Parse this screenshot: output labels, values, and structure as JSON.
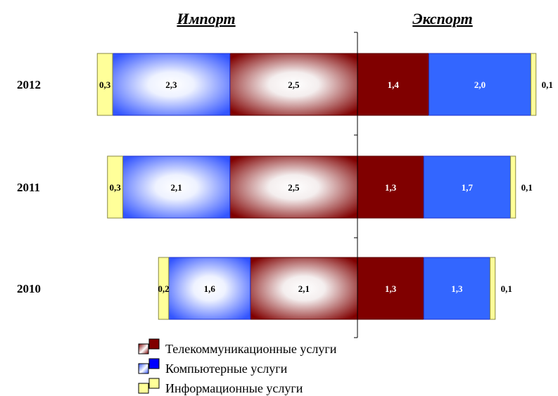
{
  "chart_data": {
    "type": "bar",
    "orientation": "horizontal",
    "stacked": "diverging",
    "headers": {
      "import": "Импорт",
      "export": "Экспорт"
    },
    "categories": [
      "2012",
      "2011",
      "2010"
    ],
    "series": [
      {
        "name": "Телекоммуникационные услуги",
        "key": "telecom",
        "import": [
          2.5,
          2.5,
          2.1
        ],
        "export": [
          1.4,
          1.3,
          1.3
        ],
        "import_labels": [
          "2,5",
          "2,5",
          "2,1"
        ],
        "export_labels": [
          "1,4",
          "1,3",
          "1,3"
        ],
        "color": "#800000"
      },
      {
        "name": "Компьютерные услуги",
        "key": "computer",
        "import": [
          2.3,
          2.1,
          1.6
        ],
        "export": [
          2.0,
          1.7,
          1.3
        ],
        "import_labels": [
          "2,3",
          "2,1",
          "1,6"
        ],
        "export_labels": [
          "2,0",
          "1,7",
          "1,3"
        ],
        "color": "#3366ff"
      },
      {
        "name": "Информационные услуги",
        "key": "information",
        "import": [
          0.3,
          0.3,
          0.2
        ],
        "export": [
          0.1,
          0.1,
          0.1
        ],
        "import_labels": [
          "0,3",
          "0,3",
          "0,2"
        ],
        "export_labels": [
          "0,1",
          "0,1",
          "0,1"
        ],
        "color": "#ffff99"
      }
    ],
    "legend": {
      "position": "bottom-center"
    },
    "grid": false
  }
}
